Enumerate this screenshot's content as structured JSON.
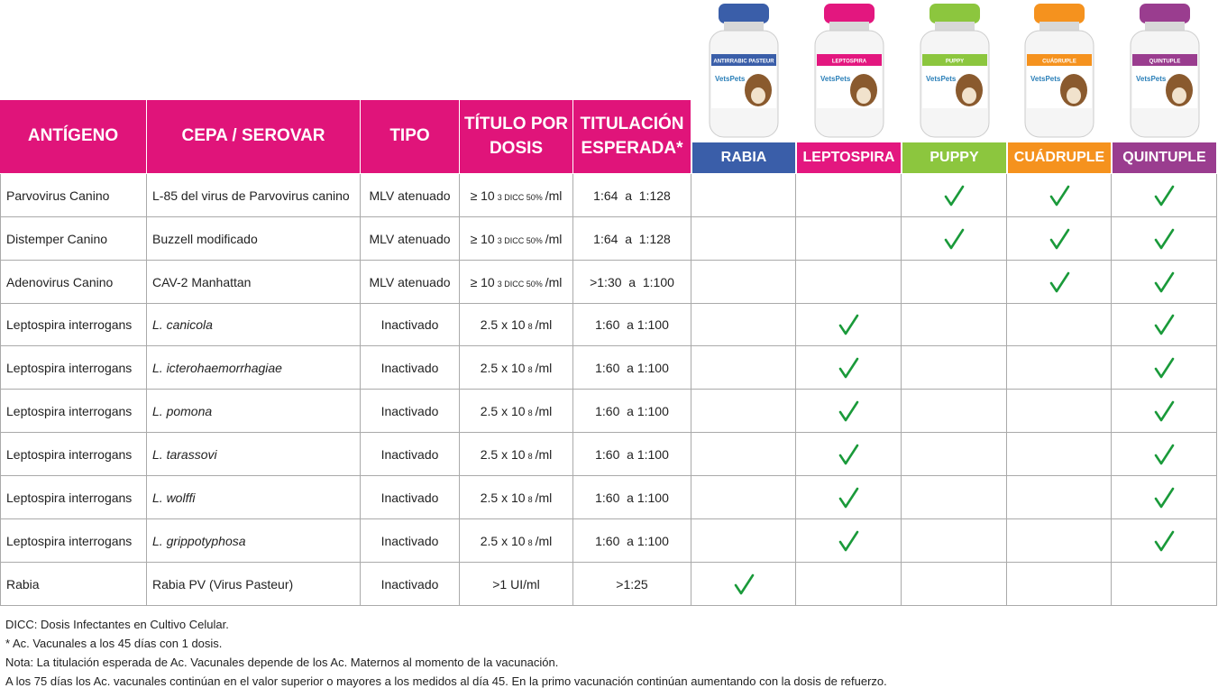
{
  "header": {
    "columns": [
      "ANTÍGENO",
      "CEPA / SEROVAR",
      "TIPO",
      "TÍTULO POR DOSIS",
      "TITULACIÓN ESPERADA*"
    ],
    "products": [
      {
        "name": "RABIA",
        "color": "#3a5ea9",
        "vial_label": "ANTIRRABIC PASTEUR"
      },
      {
        "name": "LEPTOSPIRA",
        "color": "#e3177f",
        "vial_label": "LEPTOSPIRA"
      },
      {
        "name": "PUPPY",
        "color": "#8cc63e",
        "vial_label": "PUPPY"
      },
      {
        "name": "CUÁDRUPLE",
        "color": "#f5921e",
        "vial_label": "CUÁDRUPLE"
      },
      {
        "name": "QUINTUPLE",
        "color": "#9a3d8f",
        "vial_label": "QUINTUPLE"
      }
    ]
  },
  "brand": "VetsPets",
  "rows": [
    {
      "antigen": "Parvovirus Canino",
      "cepa": "L-85 del virus de Parvovirus canino",
      "italic": false,
      "tipo": "MLV atenuado",
      "titulo": [
        "≥ 10",
        "3 DICC 50%",
        "/ml"
      ],
      "titulacion": "1:64  a  1:128",
      "checks": [
        false,
        false,
        true,
        true,
        true
      ]
    },
    {
      "antigen": "Distemper Canino",
      "cepa": "Buzzell modificado",
      "italic": false,
      "tipo": "MLV atenuado",
      "titulo": [
        "≥ 10",
        "3 DICC 50%",
        "/ml"
      ],
      "titulacion": "1:64  a  1:128",
      "checks": [
        false,
        false,
        true,
        true,
        true
      ]
    },
    {
      "antigen": "Adenovirus Canino",
      "cepa": "CAV-2 Manhattan",
      "italic": false,
      "tipo": "MLV atenuado",
      "titulo": [
        "≥ 10",
        "3 DICC 50%",
        "/ml"
      ],
      "titulacion": ">1:30  a  1:100",
      "checks": [
        false,
        false,
        false,
        true,
        true
      ]
    },
    {
      "antigen": "Leptospira interrogans",
      "cepa": "L. canicola",
      "italic": true,
      "tipo": "Inactivado",
      "titulo": [
        "2.5 x 10",
        "8",
        "/ml"
      ],
      "titulacion": "1:60  a 1:100",
      "checks": [
        false,
        true,
        false,
        false,
        true
      ]
    },
    {
      "antigen": "Leptospira interrogans",
      "cepa": "L. icterohaemorrhagiae",
      "italic": true,
      "tipo": "Inactivado",
      "titulo": [
        "2.5 x 10",
        "8",
        "/ml"
      ],
      "titulacion": "1:60  a 1:100",
      "checks": [
        false,
        true,
        false,
        false,
        true
      ]
    },
    {
      "antigen": "Leptospira interrogans",
      "cepa": "L. pomona",
      "italic": true,
      "tipo": "Inactivado",
      "titulo": [
        "2.5 x 10",
        "8",
        "/ml"
      ],
      "titulacion": "1:60  a 1:100",
      "checks": [
        false,
        true,
        false,
        false,
        true
      ]
    },
    {
      "antigen": "Leptospira interrogans",
      "cepa": "L. tarassovi",
      "italic": true,
      "tipo": "Inactivado",
      "titulo": [
        "2.5 x 10",
        "8",
        "/ml"
      ],
      "titulacion": "1:60  a 1:100",
      "checks": [
        false,
        true,
        false,
        false,
        true
      ]
    },
    {
      "antigen": "Leptospira interrogans",
      "cepa": "L. wolffi",
      "italic": true,
      "tipo": "Inactivado",
      "titulo": [
        "2.5 x 10",
        "8",
        "/ml"
      ],
      "titulacion": "1:60  a 1:100",
      "checks": [
        false,
        true,
        false,
        false,
        true
      ]
    },
    {
      "antigen": "Leptospira interrogans",
      "cepa": "L. grippotyphosa",
      "italic": true,
      "tipo": "Inactivado",
      "titulo": [
        "2.5 x 10",
        "8",
        "/ml"
      ],
      "titulacion": "1:60  a 1:100",
      "checks": [
        false,
        true,
        false,
        false,
        true
      ]
    },
    {
      "antigen": "Rabia",
      "cepa": "Rabia PV (Virus Pasteur)",
      "italic": false,
      "tipo": "Inactivado",
      "titulo": [
        ">1 UI/ml"
      ],
      "titulacion": ">1:25",
      "checks": [
        true,
        false,
        false,
        false,
        false
      ]
    }
  ],
  "notes": [
    "DICC: Dosis Infectantes en Cultivo Celular.",
    "* Ac. Vacunales a los 45 días con 1 dosis.",
    "Nota: La titulación esperada de Ac. Vacunales depende de los Ac. Maternos al momento de la vacunación.",
    "A los 75 días los Ac. vacunales continúan en el valor superior o mayores a los medidos al día 45.  En la primo vacunación continúan aumentando con la dosis de refuerzo."
  ]
}
